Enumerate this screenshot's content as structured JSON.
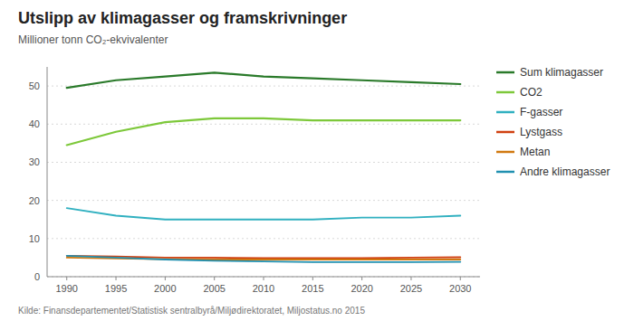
{
  "chart_data": {
    "type": "line",
    "title": "Utslipp av klimagasser og framskrivninger",
    "subtitle": "Millioner tonn CO₂-ekvivalenter",
    "annotations": [
      "Kilde: Finansdepartementet/Statistisk sentralbyrå/Miljødirektoratet, Miljostatus.no 2015"
    ],
    "x": [
      1990,
      1995,
      2000,
      2005,
      2010,
      2015,
      2020,
      2025,
      2030
    ],
    "series": [
      {
        "name": "Sum klimagasser",
        "color": "#2a7a2a",
        "values": [
          49.5,
          51.5,
          52.5,
          53.5,
          52.5,
          52.0,
          51.5,
          51.0,
          50.5
        ]
      },
      {
        "name": "CO2",
        "color": "#7dc83a",
        "values": [
          34.5,
          38.0,
          40.5,
          41.5,
          41.5,
          41.0,
          41.0,
          41.0,
          41.0
        ]
      },
      {
        "name": "F-gasser",
        "color": "#30b0c0",
        "values": [
          18.0,
          16.0,
          15.0,
          15.0,
          15.0,
          15.0,
          15.5,
          15.5,
          16.0
        ]
      },
      {
        "name": "Lystgass",
        "color": "#d04010",
        "values": [
          5.5,
          5.3,
          5.0,
          5.0,
          4.9,
          4.9,
          4.9,
          5.0,
          5.1
        ]
      },
      {
        "name": "Metan",
        "color": "#d07810",
        "values": [
          5.0,
          4.8,
          4.6,
          4.5,
          4.5,
          4.5,
          4.5,
          4.5,
          4.5
        ]
      },
      {
        "name": "Andre klimagasser",
        "color": "#2090b0",
        "values": [
          5.5,
          5.0,
          4.5,
          4.2,
          4.0,
          3.8,
          3.8,
          3.8,
          3.9
        ]
      }
    ],
    "xlim": [
      1988,
      2032
    ],
    "xticks": [
      1990,
      1995,
      2000,
      2005,
      2010,
      2015,
      2020,
      2025,
      2030
    ],
    "ylim": [
      0,
      55
    ],
    "yticks": [
      0,
      10,
      20,
      30,
      40,
      50
    ],
    "grid": true,
    "legend": "right"
  }
}
